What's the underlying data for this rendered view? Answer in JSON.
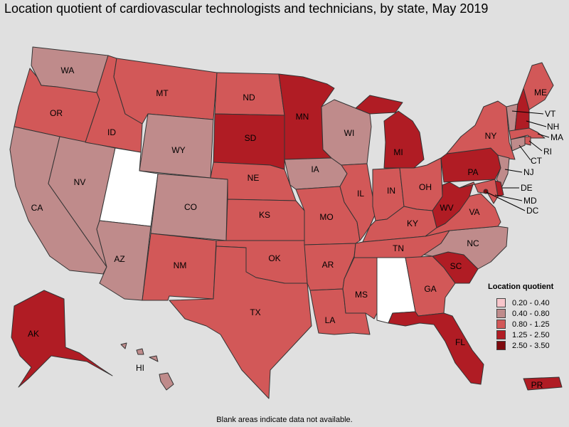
{
  "title": "Location quotient of cardiovascular technologists and technicians, by state, May 2019",
  "footnote": "Blank areas indicate data not available.",
  "legend": {
    "title": "Location quotient",
    "items": [
      {
        "label": "0.20 - 0.40",
        "color": "#f8c6cb"
      },
      {
        "label": "0.40 - 0.80",
        "color": "#bf8b8b"
      },
      {
        "label": "0.80 - 1.25",
        "color": "#d25858"
      },
      {
        "label": "1.25 - 2.50",
        "color": "#b01c24"
      },
      {
        "label": "2.50 - 3.50",
        "color": "#7e0a0e"
      }
    ]
  },
  "colors": {
    "no_data": "#ffffff",
    "0.40 - 0.80": "#bf8b8b",
    "0.80 - 1.25": "#d25858",
    "1.25 - 2.50": "#b01c24",
    "2.50 - 3.50": "#7e0a0e"
  },
  "states": [
    {
      "abbr": "WA",
      "class": "0.40 - 0.80"
    },
    {
      "abbr": "OR",
      "class": "0.80 - 1.25"
    },
    {
      "abbr": "CA",
      "class": "0.40 - 0.80"
    },
    {
      "abbr": "NV",
      "class": "0.40 - 0.80"
    },
    {
      "abbr": "ID",
      "class": "0.80 - 1.25"
    },
    {
      "abbr": "MT",
      "class": "0.80 - 1.25"
    },
    {
      "abbr": "WY",
      "class": "0.40 - 0.80"
    },
    {
      "abbr": "UT",
      "class": "no data"
    },
    {
      "abbr": "AZ",
      "class": "0.40 - 0.80"
    },
    {
      "abbr": "CO",
      "class": "0.40 - 0.80"
    },
    {
      "abbr": "NM",
      "class": "0.80 - 1.25"
    },
    {
      "abbr": "ND",
      "class": "0.80 - 1.25"
    },
    {
      "abbr": "SD",
      "class": "1.25 - 2.50"
    },
    {
      "abbr": "NE",
      "class": "0.80 - 1.25"
    },
    {
      "abbr": "KS",
      "class": "0.80 - 1.25"
    },
    {
      "abbr": "OK",
      "class": "0.80 - 1.25"
    },
    {
      "abbr": "TX",
      "class": "0.80 - 1.25"
    },
    {
      "abbr": "MN",
      "class": "1.25 - 2.50"
    },
    {
      "abbr": "IA",
      "class": "0.40 - 0.80"
    },
    {
      "abbr": "MO",
      "class": "0.80 - 1.25"
    },
    {
      "abbr": "AR",
      "class": "0.80 - 1.25"
    },
    {
      "abbr": "LA",
      "class": "0.80 - 1.25"
    },
    {
      "abbr": "WI",
      "class": "0.40 - 0.80"
    },
    {
      "abbr": "IL",
      "class": "0.80 - 1.25"
    },
    {
      "abbr": "MI",
      "class": "1.25 - 2.50"
    },
    {
      "abbr": "IN",
      "class": "0.80 - 1.25"
    },
    {
      "abbr": "OH",
      "class": "0.80 - 1.25"
    },
    {
      "abbr": "KY",
      "class": "0.80 - 1.25"
    },
    {
      "abbr": "TN",
      "class": "0.80 - 1.25"
    },
    {
      "abbr": "MS",
      "class": "0.80 - 1.25"
    },
    {
      "abbr": "AL",
      "class": "no data"
    },
    {
      "abbr": "GA",
      "class": "0.80 - 1.25"
    },
    {
      "abbr": "FL",
      "class": "1.25 - 2.50"
    },
    {
      "abbr": "SC",
      "class": "1.25 - 2.50"
    },
    {
      "abbr": "NC",
      "class": "0.40 - 0.80"
    },
    {
      "abbr": "VA",
      "class": "0.80 - 1.25"
    },
    {
      "abbr": "WV",
      "class": "1.25 - 2.50"
    },
    {
      "abbr": "PA",
      "class": "1.25 - 2.50"
    },
    {
      "abbr": "NY",
      "class": "0.80 - 1.25"
    },
    {
      "abbr": "VT",
      "class": "0.40 - 0.80"
    },
    {
      "abbr": "NH",
      "class": "1.25 - 2.50"
    },
    {
      "abbr": "ME",
      "class": "0.80 - 1.25"
    },
    {
      "abbr": "MA",
      "class": "0.80 - 1.25"
    },
    {
      "abbr": "RI",
      "class": "0.80 - 1.25"
    },
    {
      "abbr": "CT",
      "class": "0.40 - 0.80"
    },
    {
      "abbr": "NJ",
      "class": "0.40 - 0.80"
    },
    {
      "abbr": "DE",
      "class": "1.25 - 2.50"
    },
    {
      "abbr": "MD",
      "class": "0.80 - 1.25"
    },
    {
      "abbr": "DC",
      "class": "2.50 - 3.50"
    },
    {
      "abbr": "AK",
      "class": "1.25 - 2.50"
    },
    {
      "abbr": "HI",
      "class": "0.40 - 0.80"
    },
    {
      "abbr": "PR",
      "class": "1.25 - 2.50"
    }
  ]
}
